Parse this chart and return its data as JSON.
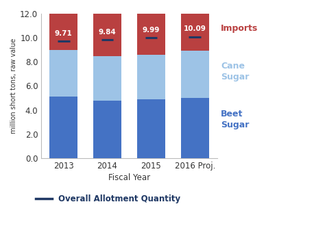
{
  "categories": [
    "2013",
    "2014",
    "2015",
    "2016 Proj."
  ],
  "beet_sugar": [
    5.1,
    4.78,
    4.9,
    5.02
  ],
  "cane_sugar": [
    3.9,
    3.72,
    3.7,
    3.88
  ],
  "allotment": [
    9.71,
    9.84,
    9.99,
    10.09
  ],
  "total": [
    12.0,
    12.0,
    12.0,
    12.0
  ],
  "allotment_labels": [
    "9.71",
    "9.84",
    "9.99",
    "10.09"
  ],
  "colors": {
    "beet_sugar": "#4472C4",
    "cane_sugar": "#9DC3E6",
    "imports": "#B94040",
    "allotment_line": "#1F3864",
    "label_text": "#FFFFFF"
  },
  "ylabel": "million short tons, raw value",
  "xlabel": "Fiscal Year",
  "ylim": [
    0.0,
    12.0
  ],
  "yticks": [
    0.0,
    2.0,
    4.0,
    6.0,
    8.0,
    10.0,
    12.0
  ],
  "legend_labels": {
    "imports": "Imports",
    "cane_sugar": "Cane\nSugar",
    "beet_sugar": "Beet\nSugar",
    "allotment": "Overall Allotment Quantity"
  },
  "right_label_color_imports": "#B94040",
  "right_label_color_cane": "#9DC3E6",
  "right_label_color_beet": "#4472C4",
  "legend_line_color": "#1F3864",
  "background_color": "#FFFFFF"
}
